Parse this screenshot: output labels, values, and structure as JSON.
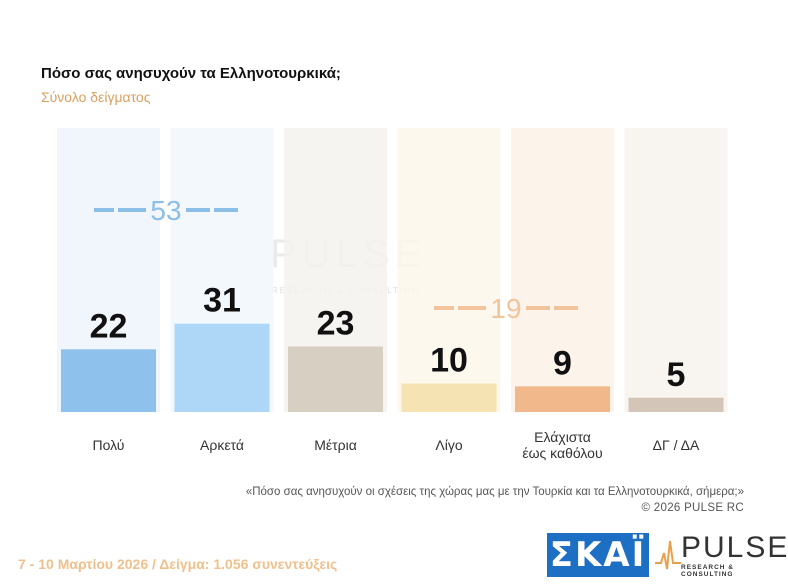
{
  "title": "Πόσο σας ανησυχούν τα Ελληνοτουρκικά;",
  "subtitle": "Σύνολο δείγματος",
  "chart_data": {
    "type": "bar",
    "categories": [
      "Πολύ",
      "Αρκετά",
      "Μέτρια",
      "Λίγο",
      [
        "Ελάχιστα",
        "έως καθόλου"
      ],
      "ΔΓ / ΔΑ"
    ],
    "values": [
      22,
      31,
      23,
      10,
      9,
      5
    ],
    "ylim": [
      0,
      60
    ],
    "bar_colors": [
      "#8ec2ec",
      "#aed6f7",
      "#d8cfc3",
      "#f5e3b3",
      "#f1b98b",
      "#d3c5b7"
    ],
    "groups": [
      {
        "value": "53",
        "color": "#8bbfe8"
      },
      {
        "value": "19",
        "color": "#f1c49b"
      }
    ]
  },
  "question": "«Πόσο σας ανησυχούν οι σχέσεις της χώρας μας με την Τουρκία και τα Ελληνοτουρκικά, σήμερα;»",
  "copyright": "©  2026  PULSE RC",
  "footer": "7 - 10  Μαρτίου 2026  /  Δείγμα:  1.056 συνεντεύξεις",
  "logos": {
    "skai": "ΣΚΑΪ",
    "pulse": "PULSE",
    "pulse_sub": "RESEARCH & CONSULTING"
  }
}
